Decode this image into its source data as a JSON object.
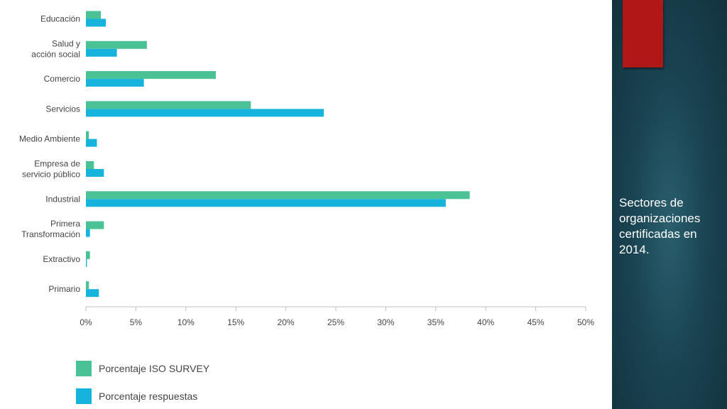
{
  "chart_data": {
    "type": "bar",
    "orientation": "horizontal",
    "categories": [
      "Educación",
      "Salud y\nacción social",
      "Comercio",
      "Servicios",
      "Medio Ambiente",
      "Empresa de\nservicio público",
      "Industrial",
      "Primera\nTransformación",
      "Extractivo",
      "Primario"
    ],
    "series": [
      {
        "name": "Porcentaje ISO SURVEY",
        "color": "#4bc196",
        "values": [
          1.5,
          6.1,
          13.0,
          16.5,
          0.3,
          0.8,
          38.4,
          1.8,
          0.4,
          0.3
        ]
      },
      {
        "name": "Porcentaje respuestas",
        "color": "#16b4dc",
        "values": [
          2.0,
          3.1,
          5.8,
          23.8,
          1.1,
          1.8,
          36.0,
          0.4,
          0.1,
          1.3
        ]
      }
    ],
    "xlim": [
      0,
      50
    ],
    "xticks": [
      "0%",
      "5%",
      "10%",
      "15%",
      "20%",
      "25%",
      "30%",
      "35%",
      "40%",
      "45%",
      "50%"
    ],
    "grid": false,
    "legend_position": "bottom-left"
  },
  "sidebar": {
    "caption": "Sectores de organizaciones certificadas en 2014.",
    "accent_color": "#b01818"
  }
}
